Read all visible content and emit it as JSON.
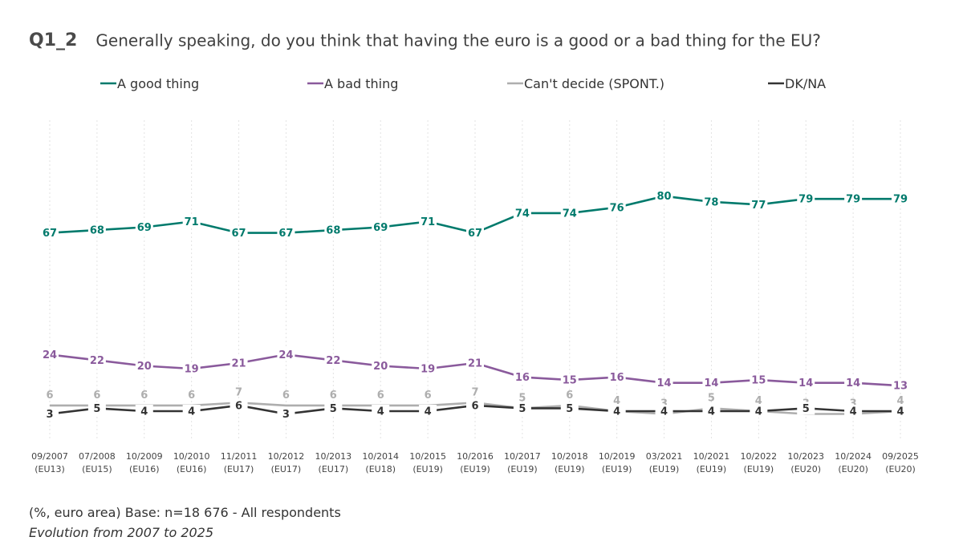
{
  "question_id": "Q1_2",
  "title": "Generally speaking, do you think that having the euro is a good or a bad thing for the EU?",
  "footer": {
    "base": "(%, euro area) Base: n=18 676 -  All respondents",
    "note": "Evolution from 2007 to 2025"
  },
  "chart_data": {
    "type": "line",
    "title": "Generally speaking, do you think that having the euro is a good or a bad thing for the EU?",
    "xlabel": "",
    "ylabel": "",
    "ylim": [
      0,
      100
    ],
    "grid": "vertical dotted",
    "legend_position": "top",
    "categories": [
      [
        "09/2007",
        "(EU13)"
      ],
      [
        "07/2008",
        "(EU15)"
      ],
      [
        "10/2009",
        "(EU16)"
      ],
      [
        "10/2010",
        "(EU16)"
      ],
      [
        "11/2011",
        "(EU17)"
      ],
      [
        "10/2012",
        "(EU17)"
      ],
      [
        "10/2013",
        "(EU17)"
      ],
      [
        "10/2014",
        "(EU18)"
      ],
      [
        "10/2015",
        "(EU19)"
      ],
      [
        "10/2016",
        "(EU19)"
      ],
      [
        "10/2017",
        "(EU19)"
      ],
      [
        "10/2018",
        "(EU19)"
      ],
      [
        "10/2019",
        "(EU19)"
      ],
      [
        "03/2021",
        "(EU19)"
      ],
      [
        "10/2021",
        "(EU19)"
      ],
      [
        "10/2022",
        "(EU19)"
      ],
      [
        "10/2023",
        "(EU20)"
      ],
      [
        "10/2024",
        "(EU20)"
      ],
      [
        "09/2025",
        "(EU20)"
      ]
    ],
    "series": [
      {
        "name": "A good thing",
        "color": "#007a6c",
        "label_pos": "on",
        "values": [
          67,
          68,
          69,
          71,
          67,
          67,
          68,
          69,
          71,
          67,
          74,
          74,
          76,
          80,
          78,
          77,
          79,
          79,
          79
        ]
      },
      {
        "name": "A bad thing",
        "color": "#8a5a9c",
        "label_pos": "on",
        "values": [
          24,
          22,
          20,
          19,
          21,
          24,
          22,
          20,
          19,
          21,
          16,
          15,
          16,
          14,
          14,
          15,
          14,
          14,
          13
        ]
      },
      {
        "name": "Can't decide (SPONT.)",
        "color": "#aeaeae",
        "label_pos": "above",
        "values": [
          6,
          6,
          6,
          6,
          7,
          6,
          6,
          6,
          6,
          7,
          5,
          6,
          4,
          3,
          5,
          4,
          3,
          3,
          4
        ]
      },
      {
        "name": "DK/NA",
        "color": "#333333",
        "label_pos": "on",
        "values": [
          3,
          5,
          4,
          4,
          6,
          3,
          5,
          4,
          4,
          6,
          5,
          5,
          4,
          4,
          4,
          4,
          5,
          4,
          4
        ]
      }
    ]
  }
}
